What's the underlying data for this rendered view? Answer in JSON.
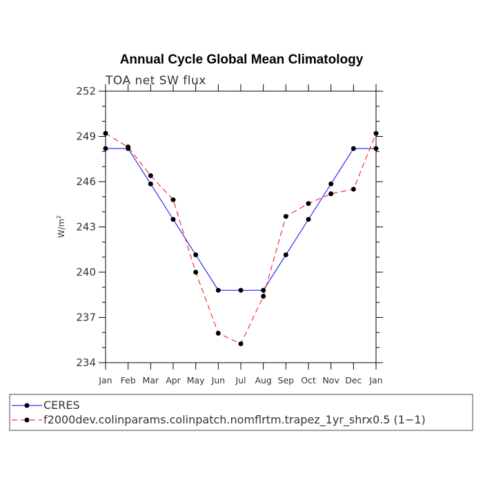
{
  "chart_data": {
    "type": "line",
    "title": "Annual Cycle Global Mean Climatology",
    "subtitle": "TOA net SW flux",
    "xlabel": "",
    "ylabel": "W/m",
    "ylabel_superscript": "2",
    "categories": [
      "Jan",
      "Feb",
      "Mar",
      "Apr",
      "May",
      "Jun",
      "Jul",
      "Aug",
      "Sep",
      "Oct",
      "Nov",
      "Dec",
      "Jan"
    ],
    "yticks": [
      234,
      237,
      240,
      243,
      246,
      249,
      252
    ],
    "ylim": [
      234,
      252
    ],
    "series": [
      {
        "name": "CERES",
        "color": "#0000ff",
        "dash": "solid",
        "values": [
          248.2,
          248.2,
          245.85,
          243.5,
          241.15,
          238.8,
          238.8,
          238.8,
          241.15,
          243.5,
          245.85,
          248.2,
          248.2
        ]
      },
      {
        "name": "f2000dev.colinparams.colinpatch.nomflrtm.trapez_1yr_shrx0.5 (1−1)",
        "color": "#ff0000",
        "dash": "dashed",
        "values": [
          249.2,
          248.3,
          246.4,
          244.8,
          240.0,
          235.95,
          235.25,
          238.4,
          243.7,
          244.55,
          245.2,
          245.5,
          249.2
        ]
      }
    ]
  }
}
